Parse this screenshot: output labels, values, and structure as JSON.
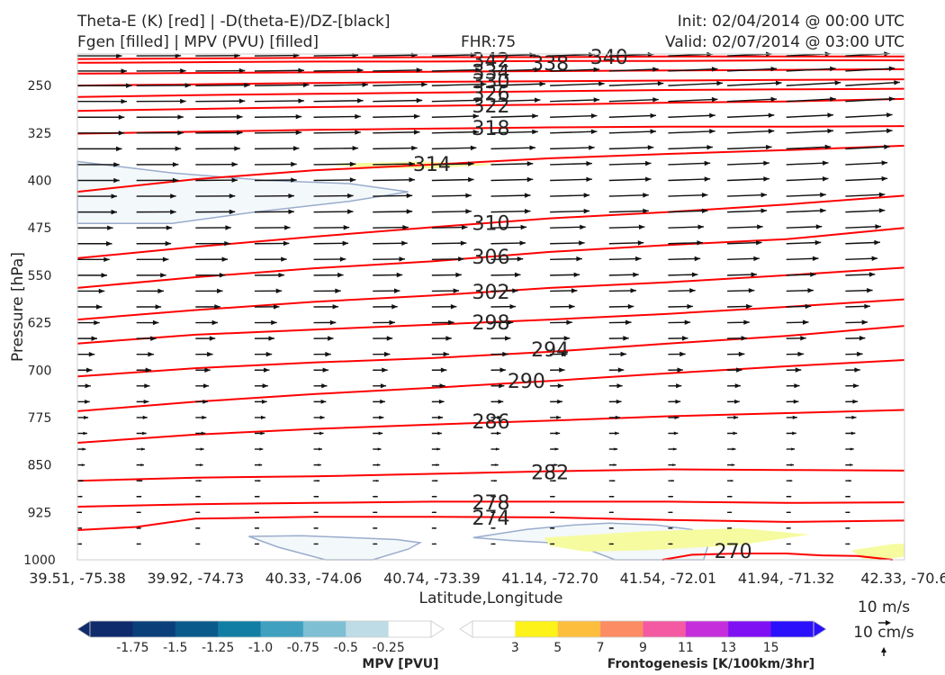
{
  "header": {
    "line1_left": "Theta-E (K) [red] | -D(theta-E)/DZ-[black]",
    "line2_left": "Fgen [filled] | MPV (PVU) [filled]",
    "fhr": "FHR:75",
    "init": "Init: 02/04/2014 @ 00:00 UTC",
    "valid": "Valid: 02/07/2014 @ 03:00 UTC"
  },
  "colors": {
    "theta_e": "#ff0000",
    "theta_e_label": "#ff5555",
    "vector": "#111111",
    "mpv_outline": "#9aaccd",
    "mpv_fill": "#f3f8fa",
    "fgen_fill": "#f6fba0",
    "frame": "#cccccc"
  },
  "chart_data": {
    "type": "cross-section",
    "xlabel": "Latitude,Longitude",
    "ylabel": "Pressure [hPa]",
    "x_ticks": [
      "39.51, -75.38",
      "39.92, -74.73",
      "40.33, -74.06",
      "40.74, -73.39",
      "41.14, -72.70",
      "41.54, -72.01",
      "41.94, -71.32",
      "42.33, -70.6"
    ],
    "y_ticks": [
      250,
      325,
      400,
      475,
      550,
      625,
      700,
      775,
      850,
      925,
      1000
    ],
    "ylim": [
      1000,
      200
    ],
    "xlim": [
      0,
      7
    ],
    "grid": false,
    "theta_e_contours": [
      {
        "level": 342,
        "pts": [
          [
            0,
            208
          ],
          [
            1,
            207
          ],
          [
            2,
            206
          ],
          [
            3,
            205
          ],
          [
            4,
            205
          ],
          [
            5,
            204
          ],
          [
            6,
            204
          ],
          [
            7,
            204
          ]
        ],
        "label_at": [
          3.5,
          209
        ]
      },
      {
        "level": 338,
        "pts": [
          [
            0,
            214
          ],
          [
            1,
            213
          ],
          [
            2,
            212
          ],
          [
            3,
            212
          ],
          [
            4,
            211
          ],
          [
            5,
            211
          ],
          [
            6,
            210
          ],
          [
            7,
            210
          ]
        ],
        "label_at": [
          4.0,
          214
        ]
      },
      {
        "level": 334,
        "pts": [
          [
            0,
            231
          ],
          [
            1,
            230
          ],
          [
            2,
            229
          ],
          [
            3,
            228
          ],
          [
            4,
            227
          ],
          [
            5,
            226
          ],
          [
            6,
            225
          ],
          [
            7,
            224
          ]
        ],
        "label_at": [
          3.5,
          228
        ]
      },
      {
        "level": 330,
        "pts": [
          [
            0,
            250
          ],
          [
            1,
            248
          ],
          [
            2,
            246
          ],
          [
            3,
            244
          ],
          [
            4,
            243
          ],
          [
            5,
            242
          ],
          [
            6,
            241
          ],
          [
            7,
            240
          ]
        ],
        "label_at": [
          3.5,
          243
        ]
      },
      {
        "level": 326,
        "pts": [
          [
            0,
            268
          ],
          [
            1,
            265
          ],
          [
            2,
            263
          ],
          [
            3,
            261
          ],
          [
            4,
            259
          ],
          [
            5,
            257
          ],
          [
            6,
            256
          ],
          [
            7,
            255
          ]
        ],
        "label_at": [
          3.5,
          262
        ]
      },
      {
        "level": 322,
        "pts": [
          [
            0,
            290
          ],
          [
            1,
            287
          ],
          [
            2,
            284
          ],
          [
            3,
            282
          ],
          [
            4,
            280
          ],
          [
            5,
            277
          ],
          [
            6,
            275
          ],
          [
            7,
            271
          ]
        ],
        "label_at": [
          3.5,
          281
        ]
      },
      {
        "level": 318,
        "pts": [
          [
            0,
            326
          ],
          [
            1,
            323
          ],
          [
            2,
            320
          ],
          [
            3,
            318
          ],
          [
            4,
            316
          ],
          [
            5,
            315
          ],
          [
            6,
            315
          ],
          [
            7,
            314
          ]
        ],
        "label_at": [
          3.5,
          317
        ]
      },
      {
        "level": 314,
        "pts": [
          [
            0,
            418
          ],
          [
            1,
            398
          ],
          [
            2,
            384
          ],
          [
            3,
            375
          ],
          [
            4,
            365
          ],
          [
            5,
            358
          ],
          [
            6,
            352
          ],
          [
            7,
            345
          ]
        ],
        "label_at": [
          3.0,
          374
        ]
      },
      {
        "level": 310,
        "pts": [
          [
            0,
            523
          ],
          [
            1,
            505
          ],
          [
            2,
            489
          ],
          [
            3,
            474
          ],
          [
            4,
            460
          ],
          [
            5,
            450
          ],
          [
            6,
            438
          ],
          [
            7,
            424
          ]
        ],
        "label_at": [
          3.5,
          467
        ]
      },
      {
        "level": 306,
        "pts": [
          [
            0,
            570
          ],
          [
            1,
            553
          ],
          [
            2,
            539
          ],
          [
            3,
            528
          ],
          [
            4,
            513
          ],
          [
            5,
            502
          ],
          [
            6,
            493
          ],
          [
            7,
            475
          ]
        ],
        "label_at": [
          3.5,
          520
        ]
      },
      {
        "level": 302,
        "pts": [
          [
            0,
            620
          ],
          [
            1,
            605
          ],
          [
            2,
            592
          ],
          [
            3,
            582
          ],
          [
            4,
            570
          ],
          [
            5,
            561
          ],
          [
            6,
            550
          ],
          [
            7,
            538
          ]
        ],
        "label_at": [
          3.5,
          576
        ]
      },
      {
        "level": 298,
        "pts": [
          [
            0,
            658
          ],
          [
            1,
            644
          ],
          [
            2,
            636
          ],
          [
            3,
            628
          ],
          [
            4,
            620
          ],
          [
            5,
            611
          ],
          [
            6,
            600
          ],
          [
            7,
            588
          ]
        ],
        "label_at": [
          3.5,
          624
        ]
      },
      {
        "level": 294,
        "pts": [
          [
            0,
            710
          ],
          [
            1,
            697
          ],
          [
            2,
            688
          ],
          [
            3,
            681
          ],
          [
            4,
            671
          ],
          [
            5,
            658
          ],
          [
            6,
            646
          ],
          [
            7,
            630
          ]
        ],
        "label_at": [
          4.0,
          667
        ]
      },
      {
        "level": 290,
        "pts": [
          [
            0,
            765
          ],
          [
            1,
            750
          ],
          [
            2,
            738
          ],
          [
            3,
            728
          ],
          [
            4,
            717
          ],
          [
            5,
            705
          ],
          [
            6,
            694
          ],
          [
            7,
            684
          ]
        ],
        "label_at": [
          3.8,
          717
        ]
      },
      {
        "level": 286,
        "pts": [
          [
            0,
            815
          ],
          [
            1,
            802
          ],
          [
            2,
            793
          ],
          [
            3,
            786
          ],
          [
            4,
            780
          ],
          [
            5,
            773
          ],
          [
            6,
            768
          ],
          [
            7,
            763
          ]
        ],
        "label_at": [
          3.5,
          781
        ]
      },
      {
        "level": 282,
        "pts": [
          [
            0,
            875
          ],
          [
            1,
            870
          ],
          [
            2,
            868
          ],
          [
            3,
            864
          ],
          [
            4,
            860
          ],
          [
            5,
            857
          ],
          [
            6,
            858
          ],
          [
            7,
            859
          ]
        ],
        "label_at": [
          4.0,
          861
        ]
      },
      {
        "level": 278,
        "pts": [
          [
            0,
            916
          ],
          [
            1,
            912
          ],
          [
            2,
            910
          ],
          [
            3,
            908
          ],
          [
            4,
            908
          ],
          [
            5,
            908
          ],
          [
            6,
            910
          ],
          [
            7,
            909
          ]
        ],
        "label_at": [
          3.5,
          909
        ]
      },
      {
        "level": 274,
        "pts": [
          [
            0,
            953
          ],
          [
            0.5,
            948
          ],
          [
            1,
            935
          ],
          [
            2,
            932
          ],
          [
            3,
            932
          ],
          [
            4,
            933
          ],
          [
            5,
            937
          ],
          [
            6,
            940
          ],
          [
            7,
            938
          ]
        ],
        "label_at": [
          3.5,
          933
        ]
      },
      {
        "level": 270,
        "pts": [
          [
            4.95,
            1000
          ],
          [
            5.2,
            992
          ],
          [
            5.6,
            990
          ],
          [
            6.0,
            990
          ],
          [
            6.3,
            993
          ],
          [
            6.6,
            994
          ],
          [
            6.9,
            1000
          ]
        ],
        "label_at": [
          5.55,
          986
        ]
      }
    ],
    "label_340": {
      "level": 340,
      "x": 4.5,
      "p": 204
    },
    "mpv_regions": [
      {
        "pts": [
          [
            0,
            370
          ],
          [
            0.8,
            388
          ],
          [
            1.6,
            400
          ],
          [
            2.3,
            405
          ],
          [
            2.8,
            418
          ],
          [
            2.3,
            433
          ],
          [
            1.5,
            450
          ],
          [
            0.8,
            468
          ],
          [
            0,
            468
          ]
        ]
      },
      {
        "pts": [
          [
            1.45,
            963
          ],
          [
            1.9,
            962
          ],
          [
            2.2,
            964
          ],
          [
            2.7,
            968
          ],
          [
            2.9,
            973
          ],
          [
            2.8,
            983
          ],
          [
            2.5,
            1000
          ],
          [
            2.1,
            1000
          ],
          [
            1.7,
            980
          ]
        ]
      },
      {
        "pts": [
          [
            3.35,
            965
          ],
          [
            3.8,
            952
          ],
          [
            4.2,
            945
          ],
          [
            4.5,
            942
          ],
          [
            4.9,
            945
          ],
          [
            5.2,
            952
          ],
          [
            5.35,
            970
          ],
          [
            5.3,
            1000
          ],
          [
            4.55,
            1000
          ],
          [
            4.2,
            975
          ],
          [
            3.7,
            970
          ]
        ]
      }
    ],
    "fgen_regions": [
      {
        "pts": [
          [
            2.1,
            374
          ],
          [
            2.9,
            370
          ],
          [
            3.6,
            374
          ],
          [
            3.0,
            381
          ],
          [
            2.4,
            380
          ]
        ]
      },
      {
        "pts": [
          [
            3.95,
            965
          ],
          [
            4.8,
            955
          ],
          [
            5.6,
            950
          ],
          [
            6.2,
            960
          ],
          [
            5.6,
            977
          ],
          [
            4.8,
            985
          ],
          [
            4.3,
            987
          ],
          [
            4.0,
            978
          ]
        ]
      },
      {
        "pts": [
          [
            6.55,
            985
          ],
          [
            6.9,
            975
          ],
          [
            7,
            975
          ],
          [
            7,
            995
          ],
          [
            6.8,
            1000
          ],
          [
            6.65,
            998
          ]
        ]
      }
    ],
    "vector_rows": [
      {
        "p": 203,
        "u": 0.9
      },
      {
        "p": 227,
        "u": 1.0
      },
      {
        "p": 250,
        "u": 1.1
      },
      {
        "p": 275,
        "u": 1.0
      },
      {
        "p": 300,
        "u": 0.95
      },
      {
        "p": 325,
        "u": 0.95
      },
      {
        "p": 350,
        "u": 0.9
      },
      {
        "p": 375,
        "u": 0.85
      },
      {
        "p": 400,
        "u": 0.85
      },
      {
        "p": 425,
        "u": 0.8
      },
      {
        "p": 450,
        "u": 0.8
      },
      {
        "p": 475,
        "u": 0.72
      },
      {
        "p": 500,
        "u": 0.7
      },
      {
        "p": 525,
        "u": 0.65
      },
      {
        "p": 550,
        "u": 0.6
      },
      {
        "p": 575,
        "u": 0.55
      },
      {
        "p": 600,
        "u": 0.5
      },
      {
        "p": 625,
        "u": 0.45
      },
      {
        "p": 650,
        "u": 0.4
      },
      {
        "p": 675,
        "u": 0.35
      },
      {
        "p": 700,
        "u": 0.3
      },
      {
        "p": 725,
        "u": 0.27
      },
      {
        "p": 750,
        "u": 0.25
      },
      {
        "p": 775,
        "u": 0.22
      },
      {
        "p": 800,
        "u": 0.2
      },
      {
        "p": 825,
        "u": 0.17
      },
      {
        "p": 850,
        "u": 0.15
      },
      {
        "p": 875,
        "u": 0.12
      },
      {
        "p": 900,
        "u": 0.1
      },
      {
        "p": 925,
        "u": 0.08
      },
      {
        "p": 950,
        "u": 0.06
      },
      {
        "p": 975,
        "u": 0.04
      }
    ],
    "vector_cols": [
      0,
      0.5,
      1,
      1.5,
      2,
      2.5,
      3,
      3.5,
      4,
      4.5,
      5,
      5.5,
      6,
      6.5,
      7
    ],
    "mpv_colorbar": {
      "label": "MPV [PVU]",
      "ticks": [
        "-1.75",
        "-1.5",
        "-1.25",
        "-1.0",
        "-0.75",
        "-0.5",
        "-0.25"
      ],
      "colors": [
        "#0f2b6b",
        "#0a3f7a",
        "#0b5a8c",
        "#127ea3",
        "#3fa0c0",
        "#7ebfd4",
        "#bddce6",
        "#ffffff"
      ]
    },
    "fgen_colorbar": {
      "label": "Frontogenesis [K/100km/3hr]",
      "ticks": [
        "3",
        "5",
        "7",
        "9",
        "11",
        "13",
        "15"
      ],
      "colors": [
        "#ffffff",
        "#fdf21a",
        "#fdbe3d",
        "#fb8c63",
        "#f45aa2",
        "#c42edb",
        "#7f10f3",
        "#2a10fb"
      ]
    },
    "key": {
      "horizontal": "10 m/s",
      "vertical": "10 cm/s"
    }
  }
}
